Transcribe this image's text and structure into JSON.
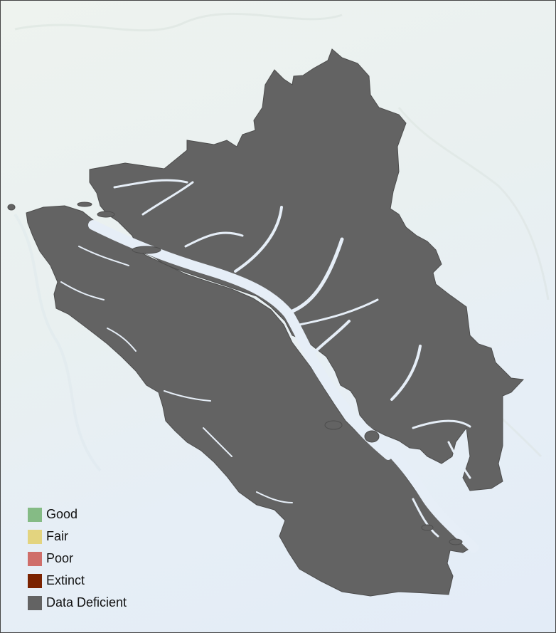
{
  "map": {
    "region_color": "#636363",
    "water_color": "#e6eef7",
    "land_background": "#eef3ef"
  },
  "legend": {
    "items": [
      {
        "label": "Good",
        "color": "#85bb85"
      },
      {
        "label": "Fair",
        "color": "#e3d47f"
      },
      {
        "label": "Poor",
        "color": "#cf6e6a"
      },
      {
        "label": "Extinct",
        "color": "#7a2200"
      },
      {
        "label": "Data Deficient",
        "color": "#636363"
      }
    ]
  }
}
